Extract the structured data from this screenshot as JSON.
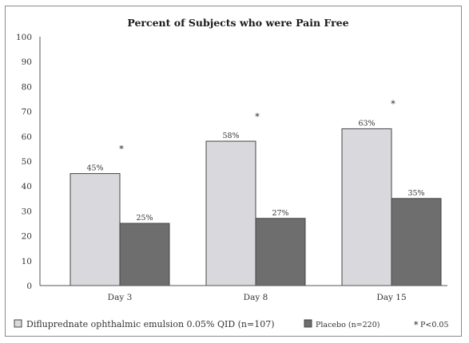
{
  "chart_data": {
    "type": "bar",
    "title": "Percent of Subjects who were Pain Free",
    "categories": [
      "Day 3",
      "Day 8",
      "Day 15"
    ],
    "series": [
      {
        "name": "Difluprednate ophthalmic emulsion 0.05% QID (n=107)",
        "values": [
          45,
          58,
          63
        ],
        "labels": [
          "45%",
          "58%",
          "63%"
        ],
        "color": "#d9d9dd"
      },
      {
        "name": "Placebo (n=220)",
        "values": [
          25,
          27,
          35
        ],
        "labels": [
          "25%",
          "27%",
          "35%"
        ],
        "color": "#6e6e6e"
      }
    ],
    "yticks": [
      "0",
      "10",
      "20",
      "30",
      "40",
      "50",
      "60",
      "70",
      "80",
      "90",
      "100"
    ],
    "ylim": [
      0,
      100
    ],
    "grid": false,
    "legend_position": "bottom",
    "significance": {
      "marker": "*",
      "y_values": [
        55,
        68,
        73
      ],
      "legend_label": "P<0.05"
    }
  }
}
